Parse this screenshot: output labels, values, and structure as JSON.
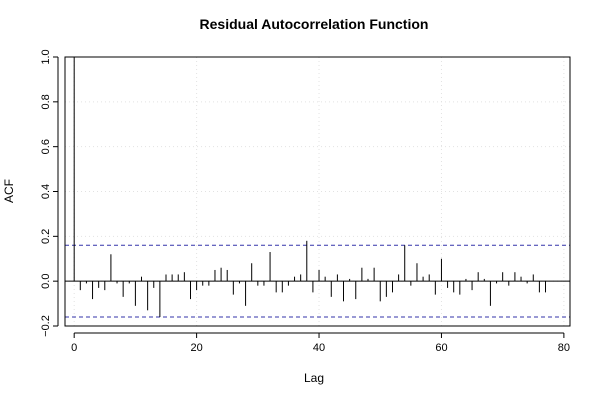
{
  "chart_data": {
    "type": "bar",
    "title": "Residual Autocorrelation Function",
    "xlabel": "Lag",
    "ylabel": "ACF",
    "xlim": [
      -1.5,
      81
    ],
    "ylim": [
      -0.2,
      1.0
    ],
    "x_ticks": [
      0,
      20,
      40,
      60,
      80
    ],
    "y_ticks": [
      -0.2,
      0.0,
      0.2,
      0.4,
      0.6,
      0.8,
      1.0
    ],
    "x_tick_labels": [
      "0",
      "20",
      "40",
      "60",
      "80"
    ],
    "y_tick_labels": [
      "−0.2",
      "0.0",
      "0.2",
      "0.4",
      "0.6",
      "0.8",
      "1.0"
    ],
    "grid": true,
    "confidence_bounds": [
      0.16,
      -0.16
    ],
    "colors": {
      "bars": "#000000",
      "confidence": "#3333aa",
      "zero_line": "#000000",
      "grid": "#e2e2e2"
    },
    "lags": [
      0,
      1,
      2,
      3,
      4,
      5,
      6,
      7,
      8,
      9,
      10,
      11,
      12,
      13,
      14,
      15,
      16,
      17,
      18,
      19,
      20,
      21,
      22,
      23,
      24,
      25,
      26,
      27,
      28,
      29,
      30,
      31,
      32,
      33,
      34,
      35,
      36,
      37,
      38,
      39,
      40,
      41,
      42,
      43,
      44,
      45,
      46,
      47,
      48,
      49,
      50,
      51,
      52,
      53,
      54,
      55,
      56,
      57,
      58,
      59,
      60,
      61,
      62,
      63,
      64,
      65,
      66,
      67,
      68,
      69,
      70,
      71,
      72,
      73,
      74,
      75,
      76,
      77
    ],
    "values": [
      1.0,
      -0.04,
      -0.01,
      -0.08,
      -0.03,
      -0.04,
      0.12,
      -0.01,
      -0.07,
      -0.01,
      -0.11,
      0.02,
      -0.13,
      -0.03,
      -0.16,
      0.03,
      0.03,
      0.03,
      0.04,
      -0.08,
      -0.04,
      -0.02,
      -0.02,
      0.05,
      0.06,
      0.05,
      -0.06,
      -0.01,
      -0.11,
      0.08,
      -0.02,
      -0.02,
      0.13,
      -0.05,
      -0.05,
      -0.02,
      0.02,
      0.03,
      0.18,
      -0.05,
      0.05,
      0.02,
      -0.07,
      0.03,
      -0.09,
      0.01,
      -0.08,
      0.06,
      0.01,
      0.06,
      -0.09,
      -0.07,
      -0.05,
      0.03,
      0.16,
      -0.02,
      0.08,
      0.02,
      0.03,
      -0.06,
      0.1,
      -0.03,
      -0.05,
      -0.06,
      0.01,
      -0.04,
      0.04,
      0.01,
      -0.11,
      -0.01,
      0.04,
      -0.02,
      0.04,
      0.02,
      -0.01,
      0.03,
      -0.05,
      -0.05
    ]
  }
}
